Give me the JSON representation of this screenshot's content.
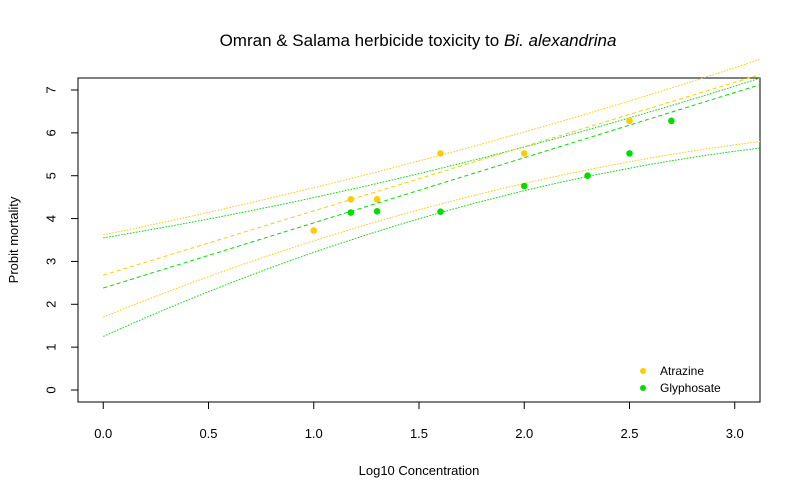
{
  "chart_data": {
    "type": "scatter",
    "title_main": "Omran & Salama herbicide toxicity to ",
    "title_italic": "Bi. alexandrina",
    "xlabel": "Log10 Concentration",
    "ylabel": "Probit mortality",
    "xlim": [
      -0.12,
      3.12
    ],
    "ylim": [
      -0.28,
      7.28
    ],
    "xticks": [
      "0.0",
      "0.5",
      "1.0",
      "1.5",
      "2.0",
      "2.5",
      "3.0"
    ],
    "yticks": [
      "0",
      "1",
      "2",
      "3",
      "4",
      "5",
      "6",
      "7"
    ],
    "grid": false,
    "legend_position": "bottom-right",
    "series": [
      {
        "name": "Atrazine",
        "color": "#FFCC00",
        "points": [
          {
            "x": 1.0,
            "y": 3.72
          },
          {
            "x": 1.176,
            "y": 4.45
          },
          {
            "x": 1.301,
            "y": 4.45
          },
          {
            "x": 1.602,
            "y": 5.52
          },
          {
            "x": 2.0,
            "y": 5.52
          },
          {
            "x": 2.5,
            "y": 6.28
          }
        ],
        "fit_line": {
          "intercept": 2.68,
          "slope": 1.5
        },
        "upper_band": {
          "intercept": 3.62,
          "slope": 1.0,
          "curve": 0.1
        },
        "lower_band": {
          "intercept": 1.7,
          "slope": 2.0,
          "curve": -0.22
        }
      },
      {
        "name": "Glyphosate",
        "color": "#00DD00",
        "points": [
          {
            "x": 1.176,
            "y": 4.14
          },
          {
            "x": 1.301,
            "y": 4.17
          },
          {
            "x": 1.602,
            "y": 4.16
          },
          {
            "x": 2.0,
            "y": 4.76
          },
          {
            "x": 2.301,
            "y": 5.0
          },
          {
            "x": 2.5,
            "y": 5.52
          },
          {
            "x": 2.699,
            "y": 6.28
          }
        ],
        "fit_line": {
          "intercept": 2.38,
          "slope": 1.52
        },
        "upper_band": {
          "intercept": 3.55,
          "slope": 0.82,
          "curve": 0.12
        },
        "lower_band": {
          "intercept": 1.25,
          "slope": 2.22,
          "curve": -0.26
        }
      }
    ]
  }
}
